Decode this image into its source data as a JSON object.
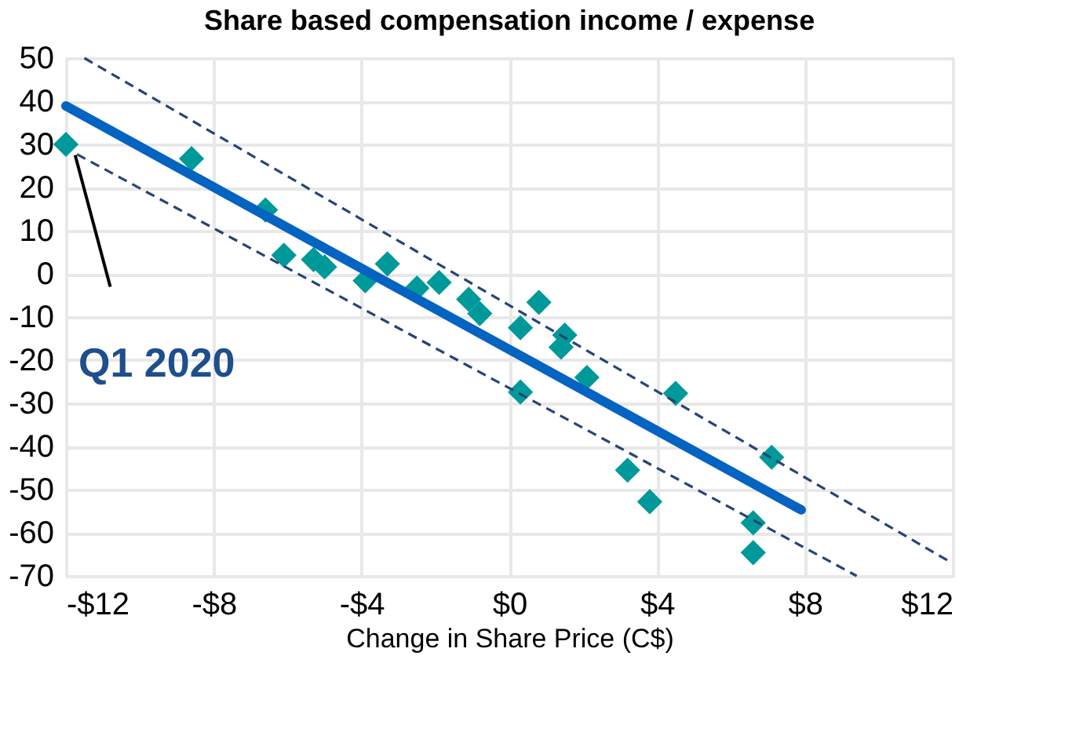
{
  "chart_data": {
    "type": "scatter",
    "title": "Share based compensation income / expense",
    "xlabel": "Change in Share Price (C$)",
    "xlim": [
      -12,
      12
    ],
    "ylim": [
      -70,
      50
    ],
    "xticks": [
      {
        "value": -12,
        "label": "-$12"
      },
      {
        "value": -8,
        "label": "-$8"
      },
      {
        "value": -4,
        "label": "-$4"
      },
      {
        "value": 0,
        "label": "$0"
      },
      {
        "value": 4,
        "label": "$4"
      },
      {
        "value": 8,
        "label": "$8"
      },
      {
        "value": 12,
        "label": "$12"
      }
    ],
    "yticks": [
      50,
      40,
      30,
      20,
      10,
      0,
      -10,
      -20,
      -30,
      -40,
      -50,
      -60,
      -70
    ],
    "grid": true,
    "series": [
      {
        "type": "scatter",
        "marker": "diamond",
        "color": "#009999",
        "x": [
          -12,
          -8.6,
          -6.6,
          -6.1,
          -5.3,
          -5.0,
          -3.9,
          -3.3,
          -2.5,
          -1.9,
          -1.1,
          -0.8,
          0.3,
          0.8,
          1.5,
          1.4,
          2.1,
          0.3,
          4.5,
          3.2,
          3.8,
          7.1,
          6.6,
          6.6
        ],
        "values": [
          30,
          26.7,
          14.8,
          4.3,
          3.3,
          1.6,
          -1.6,
          2.3,
          -3.3,
          -2,
          -5.9,
          -9.2,
          -12.5,
          -6.6,
          -14.2,
          -17,
          -24,
          -27.4,
          -27.7,
          -45.5,
          -52.8,
          -42.5,
          -57.7,
          -64.6
        ]
      },
      {
        "type": "line",
        "marker": "none",
        "line_style": "solid",
        "color": "#0563c1",
        "x": [
          -12,
          7.9
        ],
        "values": [
          38.9,
          -54.7
        ]
      },
      {
        "type": "line",
        "marker": "none",
        "line_style": "dashed",
        "color": "#264478",
        "x": [
          -11.5,
          11.9
        ],
        "values": [
          50,
          -66.6
        ]
      },
      {
        "type": "line",
        "marker": "none",
        "line_style": "dashed",
        "color": "#264478",
        "x": [
          -11.7,
          9.4
        ],
        "values": [
          27.7,
          -70
        ]
      }
    ],
    "annotations": [
      {
        "text": "Q1 2020",
        "x": -12,
        "y": 30
      }
    ]
  }
}
